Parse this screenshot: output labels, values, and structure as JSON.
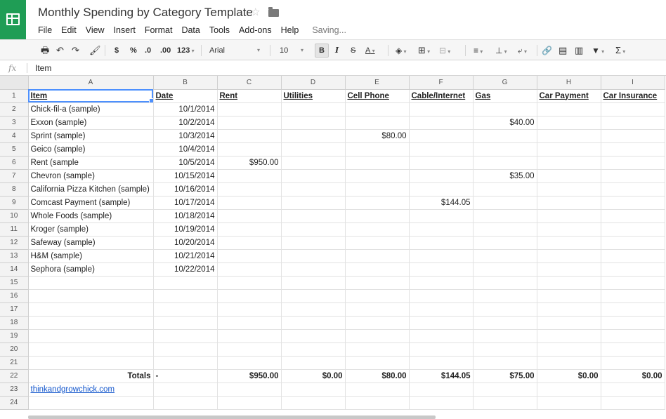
{
  "document": {
    "title": "Monthly Spending by Category Template",
    "status": "Saving..."
  },
  "menu": [
    "File",
    "Edit",
    "View",
    "Insert",
    "Format",
    "Data",
    "Tools",
    "Add-ons",
    "Help"
  ],
  "toolbar": {
    "currency": "$",
    "percent": "%",
    "decrease_decimal": ".0",
    "increase_decimal": ".00",
    "more_formats": "123",
    "font": "Arial",
    "font_size": "10",
    "bold": "B",
    "italic": "I",
    "strikethrough": "S",
    "text_color": "A",
    "sum": "Σ"
  },
  "formula": {
    "fx": "fx",
    "value": "Item"
  },
  "columns": [
    "A",
    "B",
    "C",
    "D",
    "E",
    "F",
    "G",
    "H",
    "I"
  ],
  "headers": [
    "Item",
    "Date",
    "Rent",
    "Utilities",
    "Cell Phone",
    "Cable/Internet",
    "Gas",
    "Car Payment",
    "Car Insurance"
  ],
  "rows": [
    [
      "Chick-fil-a (sample)",
      "10/1/2014",
      "",
      "",
      "",
      "",
      "",
      "",
      ""
    ],
    [
      "Exxon (sample)",
      "10/2/2014",
      "",
      "",
      "",
      "",
      "$40.00",
      "",
      ""
    ],
    [
      "Sprint (sample)",
      "10/3/2014",
      "",
      "",
      "$80.00",
      "",
      "",
      "",
      ""
    ],
    [
      "Geico (sample)",
      "10/4/2014",
      "",
      "",
      "",
      "",
      "",
      "",
      ""
    ],
    [
      "Rent (sample",
      "10/5/2014",
      "$950.00",
      "",
      "",
      "",
      "",
      "",
      ""
    ],
    [
      "Chevron (sample)",
      "10/15/2014",
      "",
      "",
      "",
      "",
      "$35.00",
      "",
      ""
    ],
    [
      "California Pizza Kitchen (sample)",
      "10/16/2014",
      "",
      "",
      "",
      "",
      "",
      "",
      ""
    ],
    [
      "Comcast Payment (sample)",
      "10/17/2014",
      "",
      "",
      "",
      "$144.05",
      "",
      "",
      ""
    ],
    [
      "Whole Foods (sample)",
      "10/18/2014",
      "",
      "",
      "",
      "",
      "",
      "",
      ""
    ],
    [
      "Kroger (sample)",
      "10/19/2014",
      "",
      "",
      "",
      "",
      "",
      "",
      ""
    ],
    [
      "Safeway (sample)",
      "10/20/2014",
      "",
      "",
      "",
      "",
      "",
      "",
      ""
    ],
    [
      "H&M (sample)",
      "10/21/2014",
      "",
      "",
      "",
      "",
      "",
      "",
      ""
    ],
    [
      "Sephora (sample)",
      "10/22/2014",
      "",
      "",
      "",
      "",
      "",
      "",
      ""
    ]
  ],
  "empty_rows": 7,
  "totals": [
    "Totals",
    "-",
    "$950.00",
    "$0.00",
    "$80.00",
    "$144.05",
    "$75.00",
    "$0.00",
    "$0.00"
  ],
  "footer_link": "thinkandgrowchick.com",
  "selected_cell": "A1"
}
